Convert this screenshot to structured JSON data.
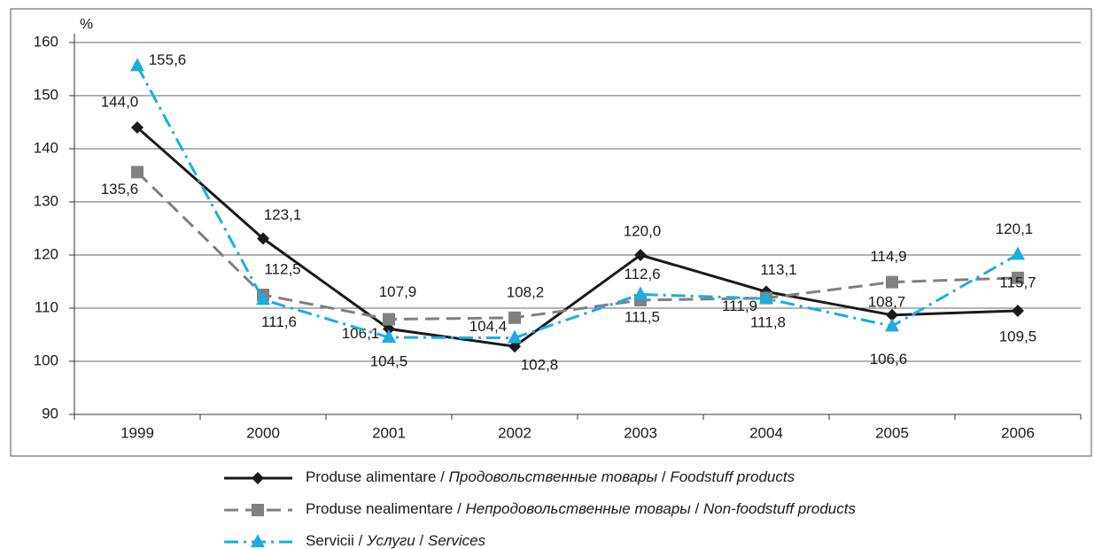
{
  "chart_data": {
    "type": "line",
    "y_axis_label": "%",
    "categories": [
      "1999",
      "2000",
      "2001",
      "2002",
      "2003",
      "2004",
      "2005",
      "2006"
    ],
    "ylim": [
      90,
      160
    ],
    "yticks": [
      90,
      100,
      110,
      120,
      130,
      140,
      150,
      160
    ],
    "grid": true,
    "series": [
      {
        "name": "Produse alimentare / Продовольственные товары / Foodstuff products",
        "color": "#1a1a1a",
        "marker": "diamond",
        "dash": "solid",
        "values": [
          144.0,
          123.1,
          106.1,
          102.8,
          120.0,
          113.1,
          108.7,
          109.5
        ],
        "value_labels": [
          "144,0",
          "123,1",
          "106,1",
          "102,8",
          "120,0",
          "113,1",
          "108,7",
          "109,5"
        ]
      },
      {
        "name": "Produse nealimentare / Непродовольственные товары / Non-foodstuff products",
        "color": "#808080",
        "marker": "square",
        "dash": "dashed",
        "values": [
          135.6,
          112.5,
          107.9,
          108.2,
          111.5,
          111.9,
          114.9,
          115.7
        ],
        "value_labels": [
          "135,6",
          "112,5",
          "107,9",
          "108,2",
          "111,5",
          "111,9",
          "114,9",
          "115,7"
        ]
      },
      {
        "name": "Servicii / Услуги / Services",
        "color": "#1aaee0",
        "marker": "triangle",
        "dash": "dashdot",
        "values": [
          155.6,
          111.6,
          104.5,
          104.4,
          112.6,
          111.8,
          106.6,
          120.1
        ],
        "value_labels": [
          "155,6",
          "111,6",
          "104,5",
          "104,4",
          "112,6",
          "111,8",
          "106,6",
          "120,1"
        ]
      }
    ]
  }
}
